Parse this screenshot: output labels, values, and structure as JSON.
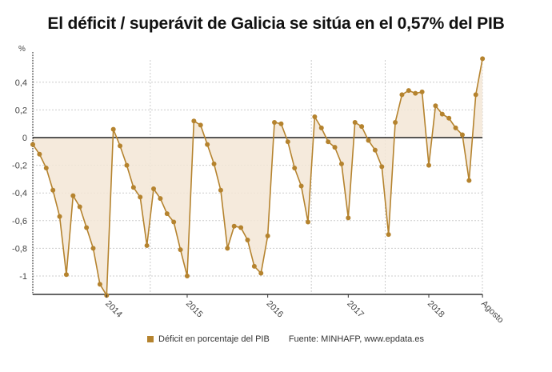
{
  "header": {
    "title": "El déficit / superávit de Galicia se sitúa en el 0,57% del PIB",
    "unit": "%"
  },
  "legend": {
    "series_label": "Déficit en porcentaje del PIB",
    "source": "Fuente: MINHAFP, www.epdata.es",
    "color": "#b5832e"
  },
  "colors": {
    "line": "#b5832e",
    "fill": "#f3e6d6",
    "zero_line": "#222222",
    "grid": "#cccccc"
  },
  "chart_data": {
    "type": "area",
    "title": "El déficit / superávit de Galicia se sitúa en el 0,57% del PIB",
    "xlabel": "",
    "ylabel": "%",
    "ylim": [
      -1.15,
      0.6
    ],
    "yticks": [
      0.4,
      0.2,
      0,
      -0.2,
      -0.4,
      -0.6,
      -0.8,
      -1
    ],
    "ytick_labels": [
      "0,4",
      "0,2",
      "0",
      "-0,2",
      "-0,4",
      "-0,6",
      "-0,8",
      "-1"
    ],
    "xtick_labels": [
      "2014",
      "2015",
      "2016",
      "2017",
      "2018",
      "Agosto"
    ],
    "grid": true,
    "legend_position": "bottom",
    "series": [
      {
        "name": "Déficit en porcentaje del PIB",
        "x": [
          "2013-01",
          "2013-02",
          "2013-03",
          "2013-04",
          "2013-05",
          "2013-06",
          "2013-07",
          "2013-08",
          "2013-09",
          "2013-10",
          "2013-11",
          "2013-12",
          "2014-01",
          "2014-02",
          "2014-03",
          "2014-04",
          "2014-05",
          "2014-06",
          "2014-07",
          "2014-08",
          "2014-09",
          "2014-10",
          "2014-11",
          "2014-12",
          "2015-01",
          "2015-02",
          "2015-03",
          "2015-04",
          "2015-05",
          "2015-06",
          "2015-07",
          "2015-08",
          "2015-09",
          "2015-10",
          "2015-11",
          "2015-12",
          "2016-01",
          "2016-02",
          "2016-03",
          "2016-04",
          "2016-05",
          "2016-06",
          "2016-07",
          "2016-08",
          "2016-09",
          "2016-10",
          "2016-11",
          "2016-12",
          "2017-01",
          "2017-02",
          "2017-03",
          "2017-04",
          "2017-05",
          "2017-06",
          "2017-07",
          "2017-08",
          "2017-09",
          "2017-10",
          "2017-11",
          "2017-12",
          "2018-01",
          "2018-02",
          "2018-03",
          "2018-04",
          "2018-05",
          "2018-06",
          "2018-07",
          "2018-08"
        ],
        "values": [
          -0.05,
          -0.12,
          -0.22,
          -0.38,
          -0.57,
          -0.99,
          -0.42,
          -0.5,
          -0.65,
          -0.8,
          -1.06,
          -1.14,
          0.06,
          -0.06,
          -0.2,
          -0.36,
          -0.43,
          -0.78,
          -0.37,
          -0.44,
          -0.55,
          -0.61,
          -0.81,
          -1.0,
          0.12,
          0.09,
          -0.05,
          -0.19,
          -0.38,
          -0.8,
          -0.64,
          -0.65,
          -0.74,
          -0.93,
          -0.98,
          -0.71,
          0.11,
          0.1,
          -0.03,
          -0.22,
          -0.35,
          -0.61,
          0.15,
          0.07,
          -0.03,
          -0.07,
          -0.19,
          -0.58,
          0.11,
          0.08,
          -0.02,
          -0.09,
          -0.21,
          -0.7,
          0.11,
          0.31,
          0.34,
          0.32,
          0.33,
          -0.2,
          0.23,
          0.17,
          0.14,
          0.07,
          0.02,
          -0.31,
          0.31,
          0.57
        ]
      }
    ]
  }
}
